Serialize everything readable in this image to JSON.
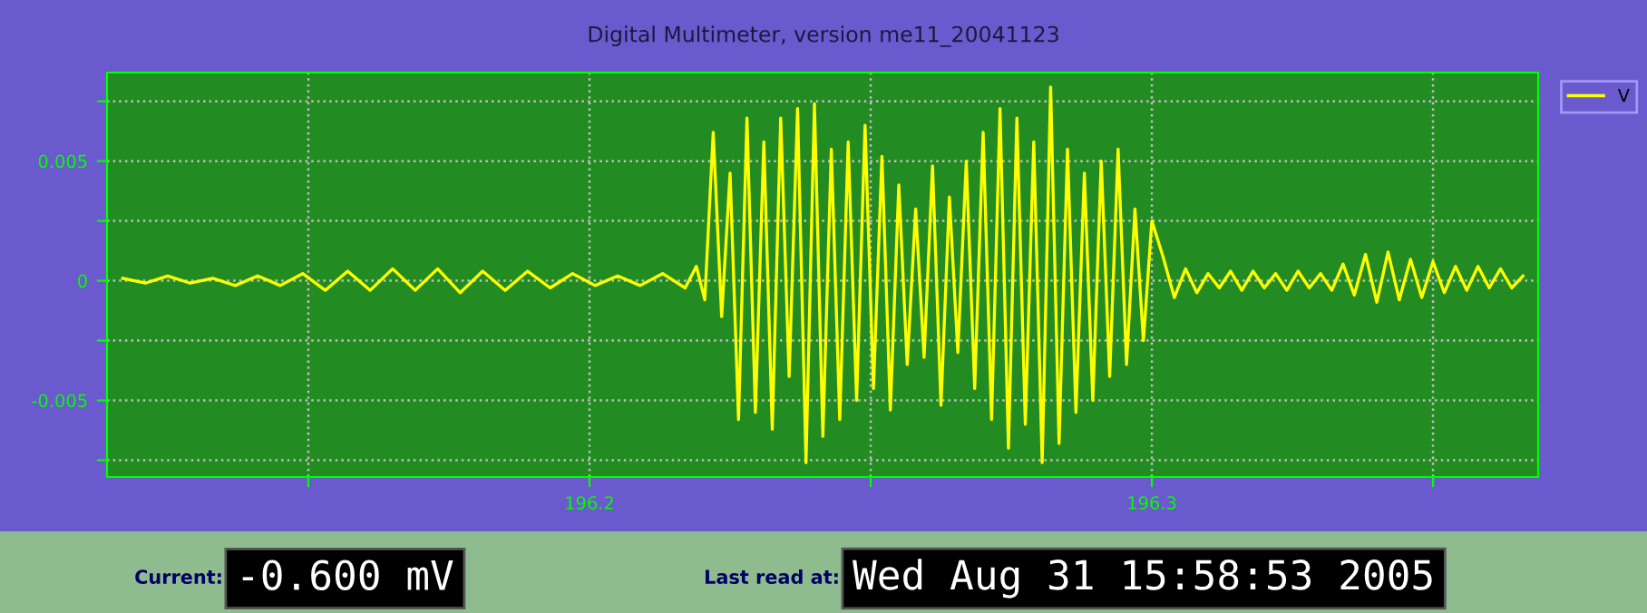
{
  "chart_data": {
    "type": "line",
    "title": "Digital Multimeter, version me11_20041123",
    "x": [
      196.117,
      196.121,
      196.125,
      196.129,
      196.133,
      196.137,
      196.141,
      196.145,
      196.149,
      196.153,
      196.157,
      196.161,
      196.165,
      196.169,
      196.173,
      196.177,
      196.181,
      196.185,
      196.189,
      196.193,
      196.197,
      196.201,
      196.205,
      196.209,
      196.213,
      196.217,
      196.219,
      196.2205,
      196.222,
      196.2235,
      196.225,
      196.2265,
      196.228,
      196.2295,
      196.231,
      196.2325,
      196.234,
      196.2355,
      196.237,
      196.2385,
      196.24,
      196.2415,
      196.243,
      196.2445,
      196.246,
      196.2475,
      196.249,
      196.2505,
      196.252,
      196.2535,
      196.255,
      196.2565,
      196.258,
      196.2595,
      196.261,
      196.2625,
      196.264,
      196.2655,
      196.267,
      196.2685,
      196.27,
      196.2715,
      196.273,
      196.2745,
      196.276,
      196.2775,
      196.279,
      196.2805,
      196.282,
      196.2835,
      196.285,
      196.2865,
      196.288,
      196.2895,
      196.291,
      196.2925,
      196.294,
      196.2955,
      196.297,
      196.2985,
      196.3,
      196.302,
      196.304,
      196.306,
      196.308,
      196.31,
      196.312,
      196.314,
      196.316,
      196.318,
      196.32,
      196.322,
      196.324,
      196.326,
      196.328,
      196.33,
      196.332,
      196.334,
      196.336,
      196.338,
      196.34,
      196.342,
      196.344,
      196.346,
      196.348,
      196.35,
      196.352,
      196.354,
      196.356,
      196.358,
      196.36,
      196.362,
      196.364,
      196.366
    ],
    "series": [
      {
        "name": "V",
        "color": "#ffff00",
        "values": [
          0.0001,
          -0.0001,
          0.0002,
          -0.0001,
          0.0001,
          -0.0002,
          0.0002,
          -0.0002,
          0.0003,
          -0.0004,
          0.0004,
          -0.0004,
          0.0005,
          -0.0004,
          0.0005,
          -0.0005,
          0.0004,
          -0.0004,
          0.0004,
          -0.0003,
          0.0003,
          -0.0002,
          0.0002,
          -0.0002,
          0.0003,
          -0.0003,
          0.0006,
          -0.0008,
          0.0062,
          -0.0015,
          0.0045,
          -0.0058,
          0.0068,
          -0.0055,
          0.0058,
          -0.0062,
          0.0068,
          -0.004,
          0.0072,
          -0.0076,
          0.0074,
          -0.0065,
          0.0055,
          -0.0058,
          0.0058,
          -0.005,
          0.0065,
          -0.0045,
          0.0052,
          -0.0054,
          0.004,
          -0.0035,
          0.003,
          -0.0032,
          0.0048,
          -0.0052,
          0.0035,
          -0.003,
          0.005,
          -0.0045,
          0.0062,
          -0.0058,
          0.0072,
          -0.007,
          0.0068,
          -0.006,
          0.0058,
          -0.0076,
          0.0081,
          -0.0068,
          0.0055,
          -0.0055,
          0.0045,
          -0.005,
          0.005,
          -0.004,
          0.0055,
          -0.0035,
          0.003,
          -0.0025,
          0.0025,
          0.001,
          -0.0007,
          0.0005,
          -0.0005,
          0.0003,
          -0.0003,
          0.0004,
          -0.0004,
          0.0004,
          -0.0003,
          0.0003,
          -0.0004,
          0.0004,
          -0.0003,
          0.0003,
          -0.0004,
          0.0007,
          -0.0006,
          0.0011,
          -0.0009,
          0.0012,
          -0.0008,
          0.0009,
          -0.0007,
          0.0008,
          -0.0005,
          0.0006,
          -0.0004,
          0.0006,
          -0.0003,
          0.0005,
          -0.0003,
          0.0002
        ]
      }
    ],
    "xlim": [
      196.1142,
      196.3687
    ],
    "ylim": [
      -0.0082,
      0.0087
    ],
    "xticks": [
      {
        "value": 196.15,
        "label": null
      },
      196.2,
      {
        "value": 196.25,
        "label": null
      },
      196.3,
      {
        "value": 196.35,
        "label": null
      }
    ],
    "yticks": [
      {
        "value": -0.0075,
        "label": null
      },
      {
        "value": -0.005,
        "label": "-0.005"
      },
      {
        "value": -0.0025,
        "label": null
      },
      0,
      {
        "value": 0.0025,
        "label": null
      },
      0.005,
      {
        "value": 0.0075,
        "label": null
      }
    ],
    "grid": true,
    "legend": "top right",
    "marker": "none",
    "line_style": "solid",
    "annotations": [
      "Current:",
      "-0.600 mV",
      "Last read at:",
      "Wed Aug 31 15:58:53 2005"
    ]
  }
}
